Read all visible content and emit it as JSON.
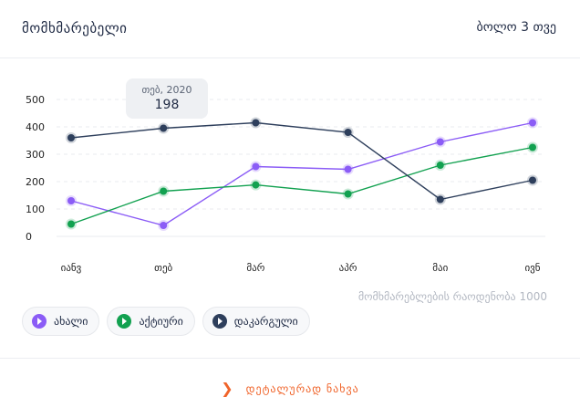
{
  "header": {
    "title": "მომხმარებელი",
    "period": "ბოლო 3 თვე"
  },
  "tooltip": {
    "label": "თებ, 2020",
    "value": "198"
  },
  "footnote": "მომხმარებლების რაოდენობა 1000",
  "legend": [
    {
      "label": "ახალი",
      "color": "#8b5cf6"
    },
    {
      "label": "აქტიური",
      "color": "#12a150"
    },
    {
      "label": "დაკარგული",
      "color": "#2e3f5c"
    }
  ],
  "footer": {
    "details_label": "დეტალურად ნახვა",
    "icon": "chevron-right-icon"
  },
  "chart_data": {
    "type": "line",
    "categories": [
      "იანვ",
      "თებ",
      "მარ",
      "აპრ",
      "მაი",
      "ივნ"
    ],
    "ylim": [
      0,
      500
    ],
    "yticks": [
      0,
      100,
      200,
      300,
      400,
      500
    ],
    "grid": true,
    "series": [
      {
        "name": "ახალი",
        "color": "#8b5cf6",
        "values": [
          130,
          40,
          255,
          245,
          345,
          415
        ]
      },
      {
        "name": "აქტიური",
        "color": "#12a150",
        "values": [
          45,
          165,
          188,
          155,
          260,
          325
        ]
      },
      {
        "name": "დაკარგული",
        "color": "#2e3f5c",
        "values": [
          360,
          395,
          415,
          380,
          135,
          205
        ]
      }
    ]
  }
}
